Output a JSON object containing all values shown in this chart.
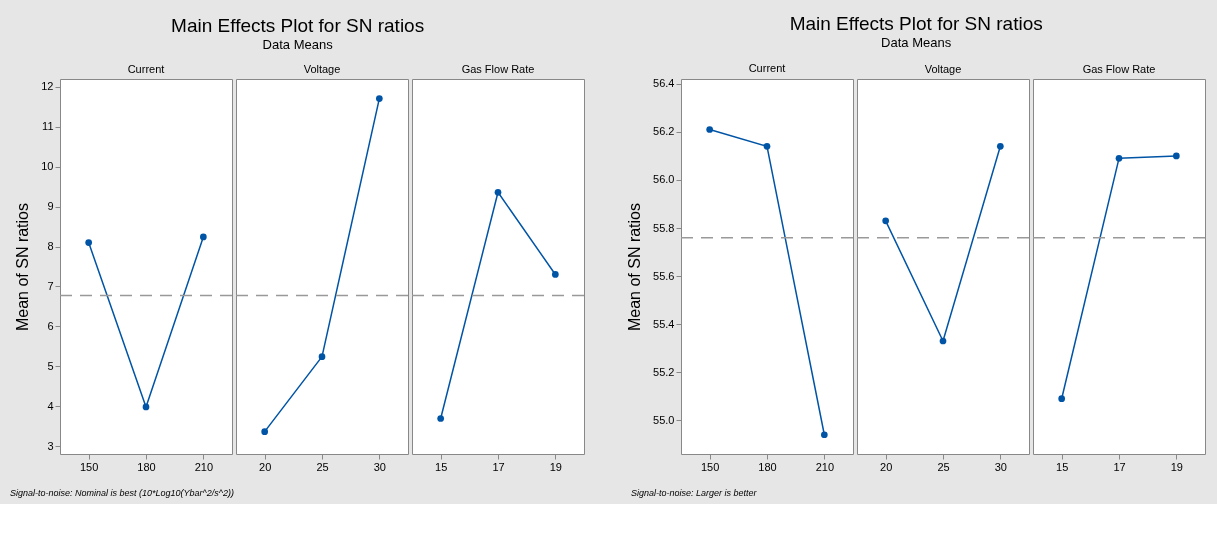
{
  "chart_data": [
    {
      "type": "line",
      "xlabel": "Current",
      "ylabel": "Mean of SN ratios",
      "categories": [
        "150",
        "180",
        "210"
      ],
      "series": [
        {
          "color": "#0054a6",
          "values": [
            8.1,
            3.98,
            8.24
          ]
        }
      ],
      "ylim": [
        2.8,
        12.2
      ],
      "yticks": [
        3,
        4,
        5,
        6,
        7,
        8,
        9,
        10,
        11,
        12
      ],
      "ref_lines": [
        {
          "axis": "y",
          "value": 6.77,
          "color": "#999999",
          "line_style": "dashed"
        }
      ],
      "marker": "circle",
      "line_style": "solid",
      "annotations": [
        "Signal-to-noise: Nominal is best (10*Log10(Ybar^2/s^2))"
      ]
    },
    {
      "type": "line",
      "title": "Main Effects Plot for SN ratios",
      "subtitle": "Data Means",
      "xlabel": "Voltage",
      "categories": [
        "20",
        "25",
        "30"
      ],
      "series": [
        {
          "color": "#0054a6",
          "values": [
            3.36,
            5.24,
            11.71
          ]
        }
      ],
      "ylim": [
        2.8,
        12.2
      ],
      "ref_lines": [
        {
          "axis": "y",
          "value": 6.77,
          "color": "#999999",
          "line_style": "dashed"
        }
      ],
      "marker": "circle",
      "line_style": "solid",
      "tick_labels": "x"
    },
    {
      "type": "line",
      "xlabel": "Gas Flow Rate",
      "categories": [
        "15",
        "17",
        "19"
      ],
      "series": [
        {
          "color": "#0054a6",
          "values": [
            3.69,
            9.36,
            7.3
          ]
        }
      ],
      "ylim": [
        2.8,
        12.2
      ],
      "ref_lines": [
        {
          "axis": "y",
          "value": 6.77,
          "color": "#999999",
          "line_style": "dashed"
        }
      ],
      "marker": "circle",
      "line_style": "solid",
      "tick_labels": "x"
    },
    {
      "type": "line",
      "xlabel": "Current",
      "ylabel": "Mean of SN ratios",
      "categories": [
        "150",
        "180",
        "210"
      ],
      "series": [
        {
          "color": "#0054a6",
          "values": [
            56.21,
            56.14,
            54.94
          ]
        }
      ],
      "ylim": [
        54.86,
        56.42
      ],
      "yticks": [
        {
          "value": 55.0,
          "label": "55.0"
        },
        55.2,
        55.4,
        55.6,
        55.8,
        {
          "value": 56.0,
          "label": "56.0"
        },
        56.2,
        56.4
      ],
      "ref_lines": [
        {
          "axis": "y",
          "value": 55.76,
          "color": "#999999",
          "line_style": "dashed"
        }
      ],
      "marker": "circle",
      "line_style": "solid",
      "annotations": [
        "Signal-to-noise: Larger is better"
      ]
    },
    {
      "type": "line",
      "title": "Main Effects Plot for SN ratios",
      "subtitle": "Data Means",
      "xlabel": "Voltage",
      "categories": [
        "20",
        "25",
        "30"
      ],
      "series": [
        {
          "color": "#0054a6",
          "values": [
            55.83,
            55.33,
            56.14
          ]
        }
      ],
      "ylim": [
        54.86,
        56.42
      ],
      "ref_lines": [
        {
          "axis": "y",
          "value": 55.76,
          "color": "#999999",
          "line_style": "dashed"
        }
      ],
      "marker": "circle",
      "line_style": "solid",
      "tick_labels": "x"
    },
    {
      "type": "line",
      "xlabel": "Gas Flow Rate",
      "categories": [
        "15",
        "17",
        "19"
      ],
      "series": [
        {
          "color": "#0054a6",
          "values": [
            55.09,
            56.09,
            56.1
          ]
        }
      ],
      "ylim": [
        54.86,
        56.42
      ],
      "ref_lines": [
        {
          "axis": "y",
          "value": 55.76,
          "color": "#999999",
          "line_style": "dashed"
        }
      ],
      "marker": "circle",
      "line_style": "solid",
      "tick_labels": "x"
    }
  ]
}
